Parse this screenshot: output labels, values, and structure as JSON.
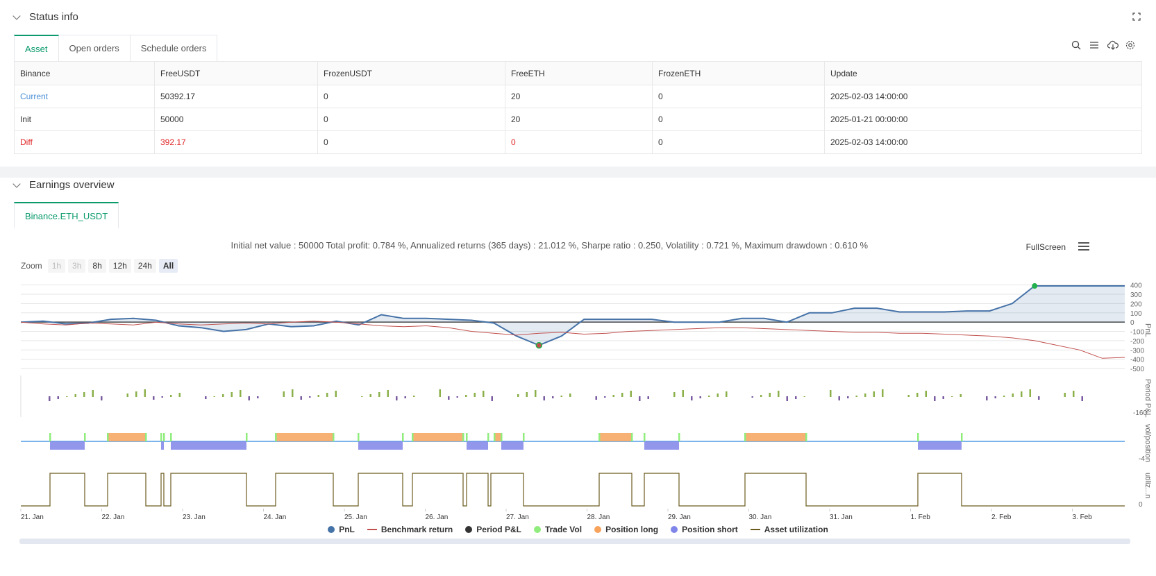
{
  "status": {
    "title": "Status info",
    "tabs": [
      "Asset",
      "Open orders",
      "Schedule orders"
    ],
    "table": {
      "headers": [
        "Binance",
        "FreeUSDT",
        "FrozenUSDT",
        "FreeETH",
        "FrozenETH",
        "Update"
      ],
      "rows": [
        [
          "Current",
          "50392.17",
          "0",
          "20",
          "0",
          "2025-02-03 14:00:00"
        ],
        [
          "Init",
          "50000",
          "0",
          "20",
          "0",
          "2025-01-21 00:00:00"
        ],
        [
          "Diff",
          "392.17",
          "0",
          "0",
          "0",
          "2025-02-03 14:00:00"
        ]
      ]
    }
  },
  "earnings": {
    "title": "Earnings overview",
    "tab": "Binance.ETH_USDT",
    "summary": "Initial net value : 50000 Total profit: 0.784 %, Annualized returns (365 days) : 21.012 %, Sharpe ratio : 0.250, Volatility : 0.721 %, Maximum drawdown : 0.610 %",
    "fullscreen": "FullScreen",
    "zoom_label": "Zoom",
    "zoom_buttons": [
      "1h",
      "3h",
      "8h",
      "12h",
      "24h",
      "All"
    ]
  },
  "chart_data": {
    "type": "line",
    "x_labels": [
      "21. Jan",
      "22. Jan",
      "23. Jan",
      "24. Jan",
      "25. Jan",
      "26. Jan",
      "27. Jan",
      "28. Jan",
      "29. Jan",
      "30. Jan",
      "31. Jan",
      "1. Feb",
      "2. Feb",
      "3. Feb"
    ],
    "pnl_axis": [
      "400",
      "300",
      "200",
      "100",
      "0",
      "-100",
      "-200",
      "-300",
      "-400",
      "-500"
    ],
    "panel_labels": [
      "PnL",
      "Period P&L",
      "vol/position",
      "utiliz...n"
    ],
    "period_min_label": "-160",
    "vol_min_label": "-4",
    "util_min_label": "0",
    "pnl_series": [
      0,
      10,
      -20,
      -10,
      30,
      40,
      20,
      -40,
      -60,
      -100,
      -80,
      -20,
      -50,
      -40,
      10,
      -30,
      80,
      40,
      40,
      30,
      20,
      -10,
      -150,
      -250,
      -150,
      30,
      30,
      30,
      30,
      0,
      0,
      0,
      40,
      40,
      0,
      100,
      100,
      150,
      150,
      110,
      110,
      110,
      120,
      120,
      200,
      390,
      390,
      390,
      390,
      390
    ],
    "benchmark_series": [
      0,
      -20,
      -30,
      -10,
      -20,
      -30,
      0,
      -20,
      -30,
      -20,
      -10,
      -20,
      0,
      10,
      0,
      -20,
      -40,
      -50,
      -40,
      -60,
      -100,
      -120,
      -140,
      -120,
      -110,
      -130,
      -120,
      -100,
      -90,
      -80,
      -70,
      -60,
      -60,
      -70,
      -80,
      -90,
      -100,
      -110,
      -110,
      -120,
      -120,
      -130,
      -140,
      -150,
      -170,
      -200,
      -250,
      -300,
      -390,
      -380
    ],
    "legend": [
      "PnL",
      "Benchmark return",
      "Period P&L",
      "Trade Vol",
      "Position long",
      "Position short",
      "Asset utilization"
    ]
  }
}
